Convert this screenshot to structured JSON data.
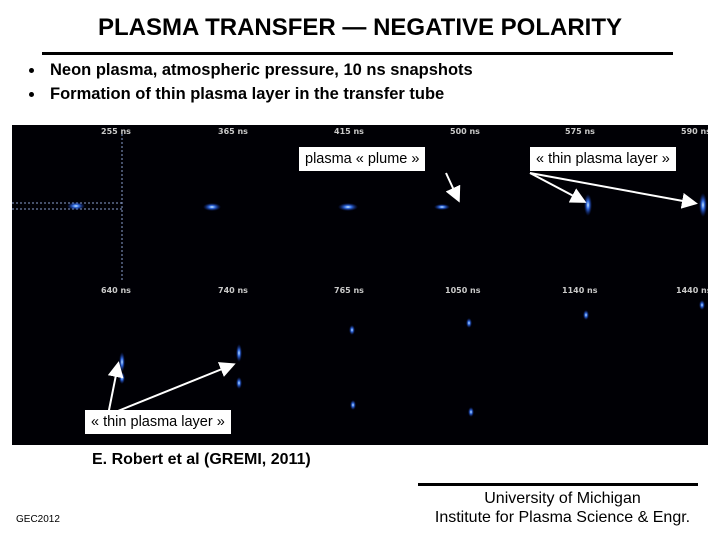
{
  "slide": {
    "title": "PLASMA TRANSFER — NEGATIVE POLARITY",
    "bullets": [
      "Neon plasma, atmospheric pressure, 10 ns snapshots",
      "Formation of thin plasma layer in the transfer tube"
    ],
    "snapshot_times_row1": [
      "255 ns",
      "365 ns",
      "415 ns",
      "500 ns",
      "575 ns",
      "590 ns"
    ],
    "snapshot_times_row2": [
      "640 ns",
      "740 ns",
      "765 ns",
      "1050 ns",
      "1140 ns",
      "1440 ns"
    ],
    "callouts": {
      "plume": "plasma « plume »",
      "thin_layer_top": "« thin plasma layer »",
      "thin_layer_bottom": "« thin plasma layer »"
    },
    "citation": "E. Robert et al (GREMI, 2011)",
    "footer_left": "GEC2012",
    "footer_right_line1": "University of Michigan",
    "footer_right_line2": "Institute for Plasma Science & Engr."
  },
  "colors": {
    "panel_background": "#000005",
    "plasma_glow": "#3a7bff",
    "plasma_core": "#d8f4ff",
    "arrow": "#ffffff"
  }
}
